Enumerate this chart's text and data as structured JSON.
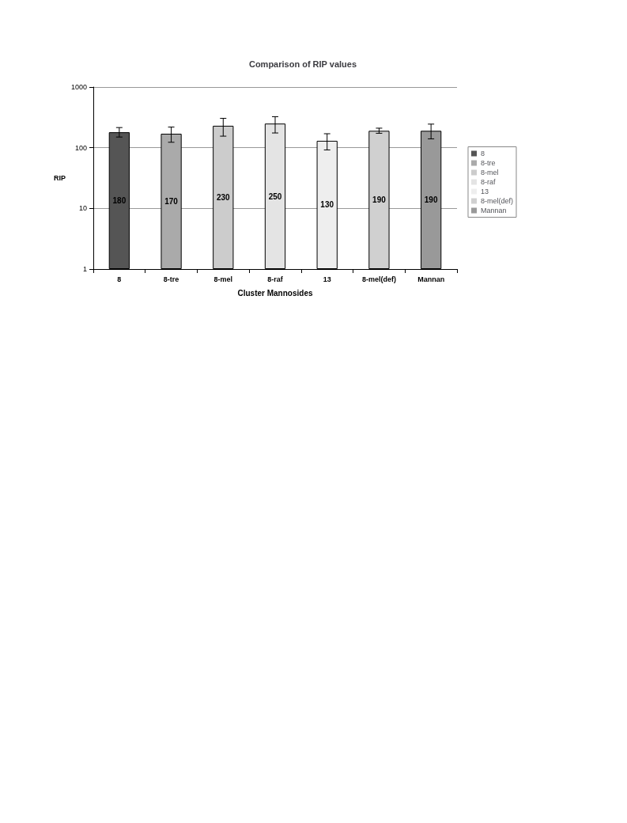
{
  "chart_data": {
    "type": "bar",
    "title": "Comparison of RIP values",
    "xlabel": "Cluster Mannosides",
    "ylabel": "RIP",
    "categories": [
      "8",
      "8-tre",
      "8-mel",
      "8-raf",
      "13",
      "8-mel(def)",
      "Mannan"
    ],
    "series": [
      {
        "name": "8",
        "color": "#555555",
        "values": [
          180,
          null,
          null,
          null,
          null,
          null,
          null
        ],
        "errors": [
          [
            150,
            215
          ],
          null,
          null,
          null,
          null,
          null,
          null
        ]
      },
      {
        "name": "8-tre",
        "color": "#aaaaaa",
        "values": [
          null,
          170,
          null,
          null,
          null,
          null,
          null
        ],
        "errors": [
          null,
          [
            123,
            219
          ],
          null,
          null,
          null,
          null,
          null
        ]
      },
      {
        "name": "8-mel",
        "color": "#cccccc",
        "values": [
          null,
          null,
          230,
          null,
          null,
          null,
          null
        ],
        "errors": [
          null,
          null,
          [
            155,
            305
          ],
          null,
          null,
          null,
          null
        ]
      },
      {
        "name": "8-raf",
        "color": "#e4e4e4",
        "values": [
          null,
          null,
          null,
          250,
          null,
          null,
          null
        ],
        "errors": [
          null,
          null,
          null,
          [
            175,
            325
          ],
          null,
          null,
          null
        ]
      },
      {
        "name": "13",
        "color": "#eeeeee",
        "values": [
          null,
          null,
          null,
          null,
          130,
          null,
          null
        ],
        "errors": [
          null,
          null,
          null,
          null,
          [
            92,
            170
          ],
          null,
          null
        ]
      },
      {
        "name": "8-mel(def)",
        "color": "#d0d0d0",
        "values": [
          null,
          null,
          null,
          null,
          null,
          190,
          null
        ],
        "errors": [
          null,
          null,
          null,
          null,
          null,
          [
            173,
            210
          ],
          null
        ]
      },
      {
        "name": "Mannan",
        "color": "#999999",
        "values": [
          null,
          null,
          null,
          null,
          null,
          null,
          190
        ],
        "errors": [
          null,
          null,
          null,
          null,
          null,
          null,
          [
            140,
            245
          ]
        ]
      }
    ],
    "data_labels": true,
    "log": true,
    "ylim": [
      1,
      1000
    ],
    "yticks": [
      1,
      10,
      100,
      1000
    ],
    "grid": "y",
    "legend": "right"
  }
}
